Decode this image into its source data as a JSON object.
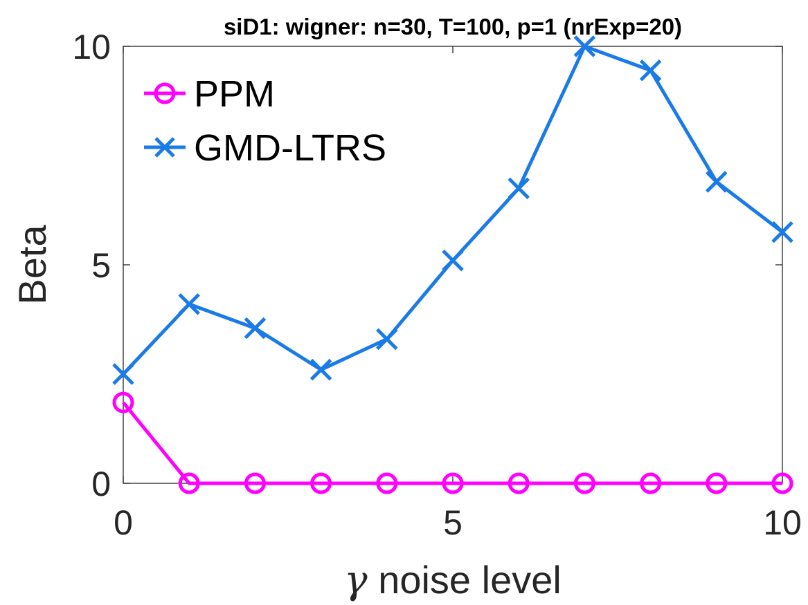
{
  "chart_data": {
    "type": "line",
    "title": "siD1: wigner: n=30, T=100, p=1 (nrExp=20)",
    "xlabel_symbol": "γ",
    "xlabel": "noise level",
    "ylabel": "Beta",
    "xlim": [
      0,
      10
    ],
    "ylim": [
      0,
      10
    ],
    "xticks": [
      "0",
      "5",
      "10"
    ],
    "yticks": [
      "0",
      "5",
      "10"
    ],
    "grid": false,
    "legend_position": "top-left",
    "x": [
      0,
      1,
      2,
      3,
      4,
      5,
      6,
      7,
      8,
      9,
      10
    ],
    "series": [
      {
        "name": "PPM",
        "color": "#ff00ff",
        "marker": "circle",
        "values": [
          1.85,
          0,
          0,
          0,
          0,
          0,
          0,
          0,
          0,
          0,
          0
        ]
      },
      {
        "name": "GMD-LTRS",
        "color": "#1a7be8",
        "marker": "cross",
        "values": [
          2.5,
          4.1,
          3.55,
          2.6,
          3.3,
          5.1,
          6.75,
          10.0,
          9.45,
          6.9,
          5.75
        ]
      }
    ]
  }
}
